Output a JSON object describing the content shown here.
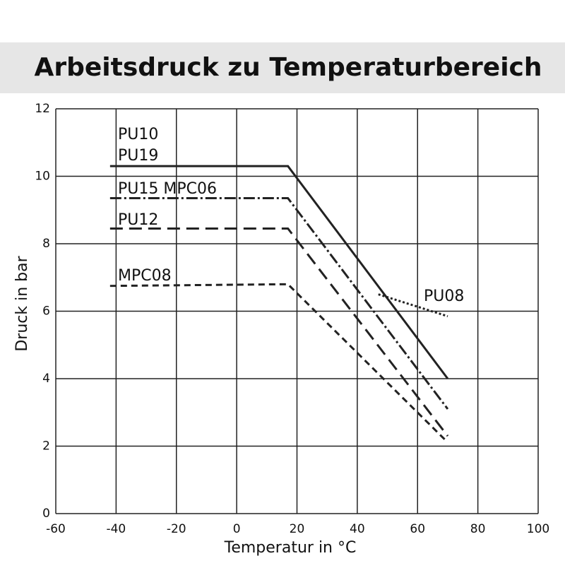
{
  "chart_data": {
    "type": "line",
    "title": "Arbeitsdruck zu Temperaturbereich",
    "xlabel": "Temperatur in °C",
    "ylabel": "Druck in bar",
    "xlim": [
      -60,
      100
    ],
    "xticks": [
      -60,
      -40,
      -20,
      0,
      20,
      40,
      60,
      80,
      100
    ],
    "ylim": [
      0,
      12
    ],
    "yticks": [
      0,
      2,
      4,
      6,
      8,
      10,
      12
    ],
    "grid": true,
    "series": [
      {
        "labels": [
          "PU10",
          "PU19"
        ],
        "color": "#222222",
        "style": "solid",
        "x": [
          -42,
          17,
          70
        ],
        "values": [
          10.3,
          10.3,
          4.0
        ]
      },
      {
        "labels": [
          "PU15 MPC06"
        ],
        "color": "#222222",
        "style": "dashdot",
        "x": [
          -42,
          17,
          70
        ],
        "values": [
          9.35,
          9.35,
          3.1
        ]
      },
      {
        "labels": [
          "PU12"
        ],
        "color": "#222222",
        "style": "dashed",
        "x": [
          -42,
          17,
          70
        ],
        "values": [
          8.45,
          8.45,
          2.3
        ]
      },
      {
        "labels": [
          "MPC08"
        ],
        "color": "#222222",
        "style": "shortdash",
        "x": [
          -42,
          17,
          69
        ],
        "values": [
          6.75,
          6.8,
          2.2
        ]
      },
      {
        "labels": [
          "PU08"
        ],
        "color": "#222222",
        "style": "dotted",
        "x": [
          47,
          70
        ],
        "values": [
          6.5,
          5.85
        ]
      }
    ]
  }
}
